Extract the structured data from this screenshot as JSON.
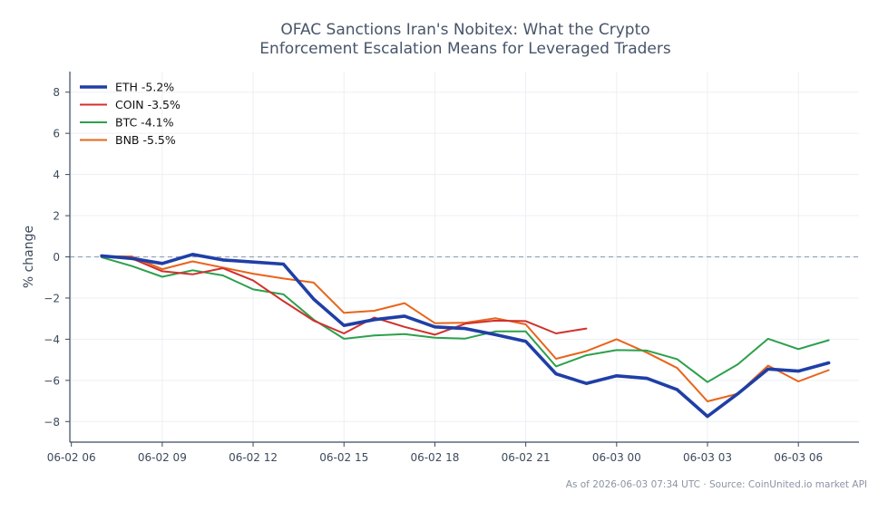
{
  "chart_data": {
    "type": "line",
    "title": "OFAC Sanctions Iran's Nobitex: What the Crypto\nEnforcement Escalation Means for Leveraged Traders",
    "xlabel": "",
    "ylabel": "% change",
    "xlim": [
      -0.05,
      26.0
    ],
    "ylim": [
      -9.0,
      9.0
    ],
    "x_unit": "hours since 2026-06-02 06:00 UTC",
    "x_ticks": [
      0,
      3,
      6,
      9,
      12,
      15,
      18,
      21,
      24
    ],
    "x_tick_labels": [
      "06-02 06",
      "06-02 09",
      "06-02 12",
      "06-02 15",
      "06-02 18",
      "06-02 21",
      "06-03 00",
      "06-03 03",
      "06-03 06"
    ],
    "y_ticks": [
      -8,
      -6,
      -4,
      -2,
      0,
      2,
      4,
      6,
      8
    ],
    "y_tick_labels": [
      "−8",
      "−6",
      "−4",
      "−2",
      "0",
      "2",
      "4",
      "6",
      "8"
    ],
    "reference_line": 0,
    "grid": true,
    "legend_position": "top-left",
    "series": [
      {
        "name": "ETH -5.2%",
        "color": "#1f3fa6",
        "width": 3.6,
        "x": [
          1,
          2,
          3,
          4,
          5,
          6,
          7,
          8,
          9,
          10,
          11,
          12,
          13,
          14,
          15,
          16,
          17,
          18,
          19,
          20,
          21,
          22,
          23,
          24,
          25
        ],
        "values": [
          0.05,
          -0.08,
          -0.32,
          0.12,
          -0.15,
          -0.25,
          -0.35,
          -2.05,
          -3.33,
          -3.05,
          -2.88,
          -3.4,
          -3.48,
          -3.78,
          -4.1,
          -5.68,
          -6.15,
          -5.78,
          -5.9,
          -6.45,
          -7.75,
          -6.65,
          -5.45,
          -5.55,
          -5.15
        ]
      },
      {
        "name": "COIN -3.5%",
        "color": "#d0312d",
        "width": 2.0,
        "x": [
          1,
          2,
          3,
          4,
          5,
          6,
          7,
          8,
          9,
          10,
          11,
          12,
          13,
          14,
          15,
          16,
          17
        ],
        "values": [
          0.02,
          -0.08,
          -0.7,
          -0.85,
          -0.55,
          -1.15,
          -2.15,
          -3.1,
          -3.72,
          -2.95,
          -3.4,
          -3.78,
          -3.25,
          -3.1,
          -3.12,
          -3.72,
          -3.48
        ]
      },
      {
        "name": "BTC -4.1%",
        "color": "#2ca04c",
        "width": 2.0,
        "x": [
          1,
          2,
          3,
          4,
          5,
          6,
          7,
          8,
          9,
          10,
          11,
          12,
          13,
          14,
          15,
          16,
          17,
          18,
          19,
          20,
          21,
          22,
          23,
          24,
          25
        ],
        "values": [
          -0.02,
          -0.45,
          -0.97,
          -0.65,
          -0.9,
          -1.58,
          -1.82,
          -3.05,
          -3.98,
          -3.82,
          -3.75,
          -3.93,
          -3.97,
          -3.62,
          -3.62,
          -5.32,
          -4.78,
          -4.53,
          -4.55,
          -4.97,
          -6.08,
          -5.22,
          -3.98,
          -4.48,
          -4.05
        ]
      },
      {
        "name": "BNB -5.5%",
        "color": "#e8641b",
        "width": 2.0,
        "x": [
          1,
          2,
          3,
          4,
          5,
          6,
          7,
          8,
          9,
          10,
          11,
          12,
          13,
          14,
          15,
          16,
          17,
          18,
          19,
          20,
          21,
          22,
          23,
          24,
          25
        ],
        "values": [
          0.02,
          0.02,
          -0.6,
          -0.22,
          -0.52,
          -0.82,
          -1.05,
          -1.25,
          -2.72,
          -2.62,
          -2.25,
          -3.22,
          -3.2,
          -2.98,
          -3.28,
          -4.95,
          -4.58,
          -4.0,
          -4.65,
          -5.4,
          -7.02,
          -6.65,
          -5.28,
          -6.05,
          -5.5
        ]
      }
    ]
  },
  "footer": "As of 2026-06-03 07:34 UTC · Source: CoinUnited.io market API"
}
